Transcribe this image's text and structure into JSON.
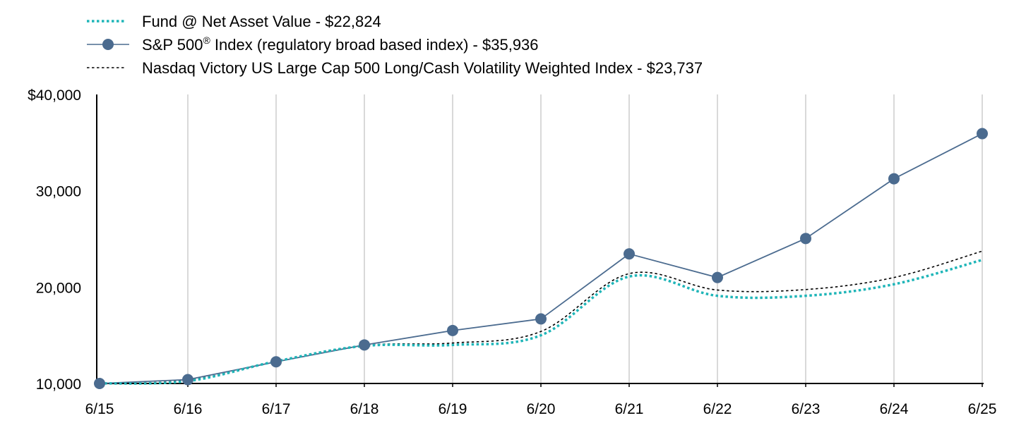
{
  "chart_data": {
    "type": "line",
    "categories": [
      "6/15",
      "6/16",
      "6/17",
      "6/18",
      "6/19",
      "6/20",
      "6/21",
      "6/22",
      "6/23",
      "6/24",
      "6/25"
    ],
    "y_tick_labels": [
      "$40,000",
      "30,000",
      "20,000",
      "10,000"
    ],
    "ylim": [
      10000,
      40000
    ],
    "grid": "vertical",
    "legend_position": "top-left",
    "series": [
      {
        "key": "fund",
        "label": "Fund @ Net Asset Value - $22,824",
        "values": [
          10000,
          10250,
          12300,
          13900,
          14000,
          15000,
          21100,
          19100,
          19100,
          20300,
          22824
        ],
        "color": "#1fb5b8",
        "style": "dotted"
      },
      {
        "key": "sp500",
        "label_main": "S&P 500",
        "label_sup": "®",
        "label_rest": " Index (regulatory broad based index) - $35,936",
        "values": [
          10000,
          10400,
          12250,
          14000,
          15500,
          16700,
          23450,
          21000,
          25050,
          31250,
          35936
        ],
        "color": "#4b6b8f",
        "style": "solid-markers"
      },
      {
        "key": "nasdaq",
        "label": "Nasdaq Victory US Large Cap 500 Long/Cash Volatility Weighted Index - $23,737",
        "values": [
          10000,
          10350,
          12250,
          13950,
          14200,
          15400,
          21400,
          19700,
          19750,
          21000,
          23737
        ],
        "color": "#000000",
        "style": "dashed"
      }
    ]
  }
}
